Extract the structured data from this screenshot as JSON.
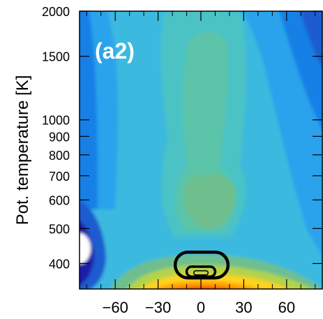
{
  "chart_data": {
    "type": "heatmap",
    "panel_label": "(a2)",
    "xlabel": "",
    "ylabel": "Pot. temperature [K]",
    "xlim": [
      -85,
      85
    ],
    "ylim": [
      340,
      2000
    ],
    "yscale": "log",
    "x_ticks": [
      -60,
      -30,
      0,
      30,
      60
    ],
    "x_tick_labels": [
      "−60",
      "−30",
      "0",
      "30",
      "60"
    ],
    "y_ticks": [
      400,
      500,
      600,
      700,
      800,
      900,
      1000,
      1500,
      2000
    ],
    "y_tick_labels": [
      "400",
      "500",
      "600",
      "700",
      "800",
      "900",
      "1000",
      "1500",
      "2000"
    ],
    "grid": false,
    "colormap": [
      "#1a1aa8",
      "#1f5bd0",
      "#1680e6",
      "#2aa3ec",
      "#3bb9df",
      "#4cc2c4",
      "#5bc4a8",
      "#6ebf8d",
      "#b5d34a",
      "#ffd21f",
      "#ffa100",
      "#ff4a00",
      "#e60000"
    ],
    "contour_lines": [
      {
        "name": "outer",
        "x_range": [
          -18,
          19
        ],
        "theta_range": [
          365,
          430
        ]
      },
      {
        "name": "middle",
        "x_range": [
          -10,
          10
        ],
        "theta_range": [
          368,
          392
        ]
      },
      {
        "name": "inner",
        "x_range": [
          -5,
          5
        ],
        "theta_range": [
          372,
          382
        ]
      }
    ]
  }
}
